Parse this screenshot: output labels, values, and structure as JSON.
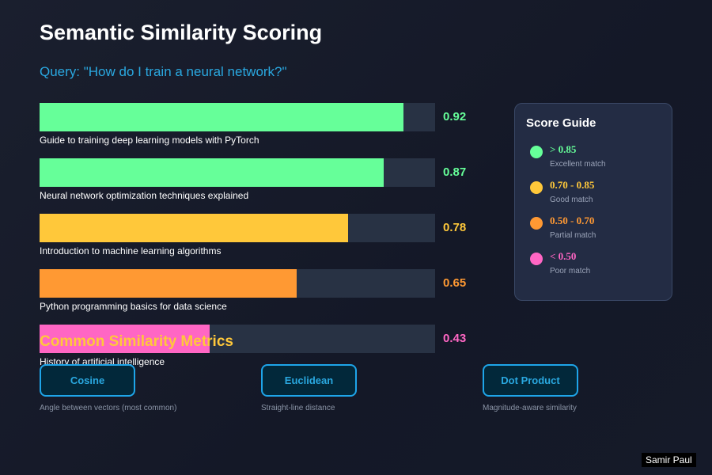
{
  "title": "Semantic Similarity Scoring",
  "query": "Query: \"How do I train a neural network?\"",
  "results": [
    {
      "doc": "Guide to training deep learning models with PyTorch",
      "score": 0.92,
      "score_label": "0.92",
      "color": "#66ff99"
    },
    {
      "doc": "Neural network optimization techniques explained",
      "score": 0.87,
      "score_label": "0.87",
      "color": "#66ff99"
    },
    {
      "doc": "Introduction to machine learning algorithms",
      "score": 0.78,
      "score_label": "0.78",
      "color": "#ffc83a"
    },
    {
      "doc": "Python programming basics for data science",
      "score": 0.65,
      "score_label": "0.65",
      "color": "#ff9933"
    },
    {
      "doc": "History of artificial intelligence",
      "score": 0.43,
      "score_label": "0.43",
      "color": "#ff66c4"
    }
  ],
  "guide": {
    "title": "Score Guide",
    "items": [
      {
        "range": "> 0.85",
        "desc": "Excellent match",
        "color": "#66ff99"
      },
      {
        "range": "0.70 - 0.85",
        "desc": "Good match",
        "color": "#ffc83a"
      },
      {
        "range": "0.50 - 0.70",
        "desc": "Partial match",
        "color": "#ff9933"
      },
      {
        "range": "< 0.50",
        "desc": "Poor match",
        "color": "#ff66c4"
      }
    ]
  },
  "metrics": {
    "title": "Common Similarity Metrics",
    "items": [
      {
        "label": "Cosine",
        "desc": "Angle between vectors (most common)"
      },
      {
        "label": "Euclidean",
        "desc": "Straight-line distance"
      },
      {
        "label": "Dot Product",
        "desc": "Magnitude-aware similarity"
      }
    ]
  },
  "watermark": "Samir Paul"
}
